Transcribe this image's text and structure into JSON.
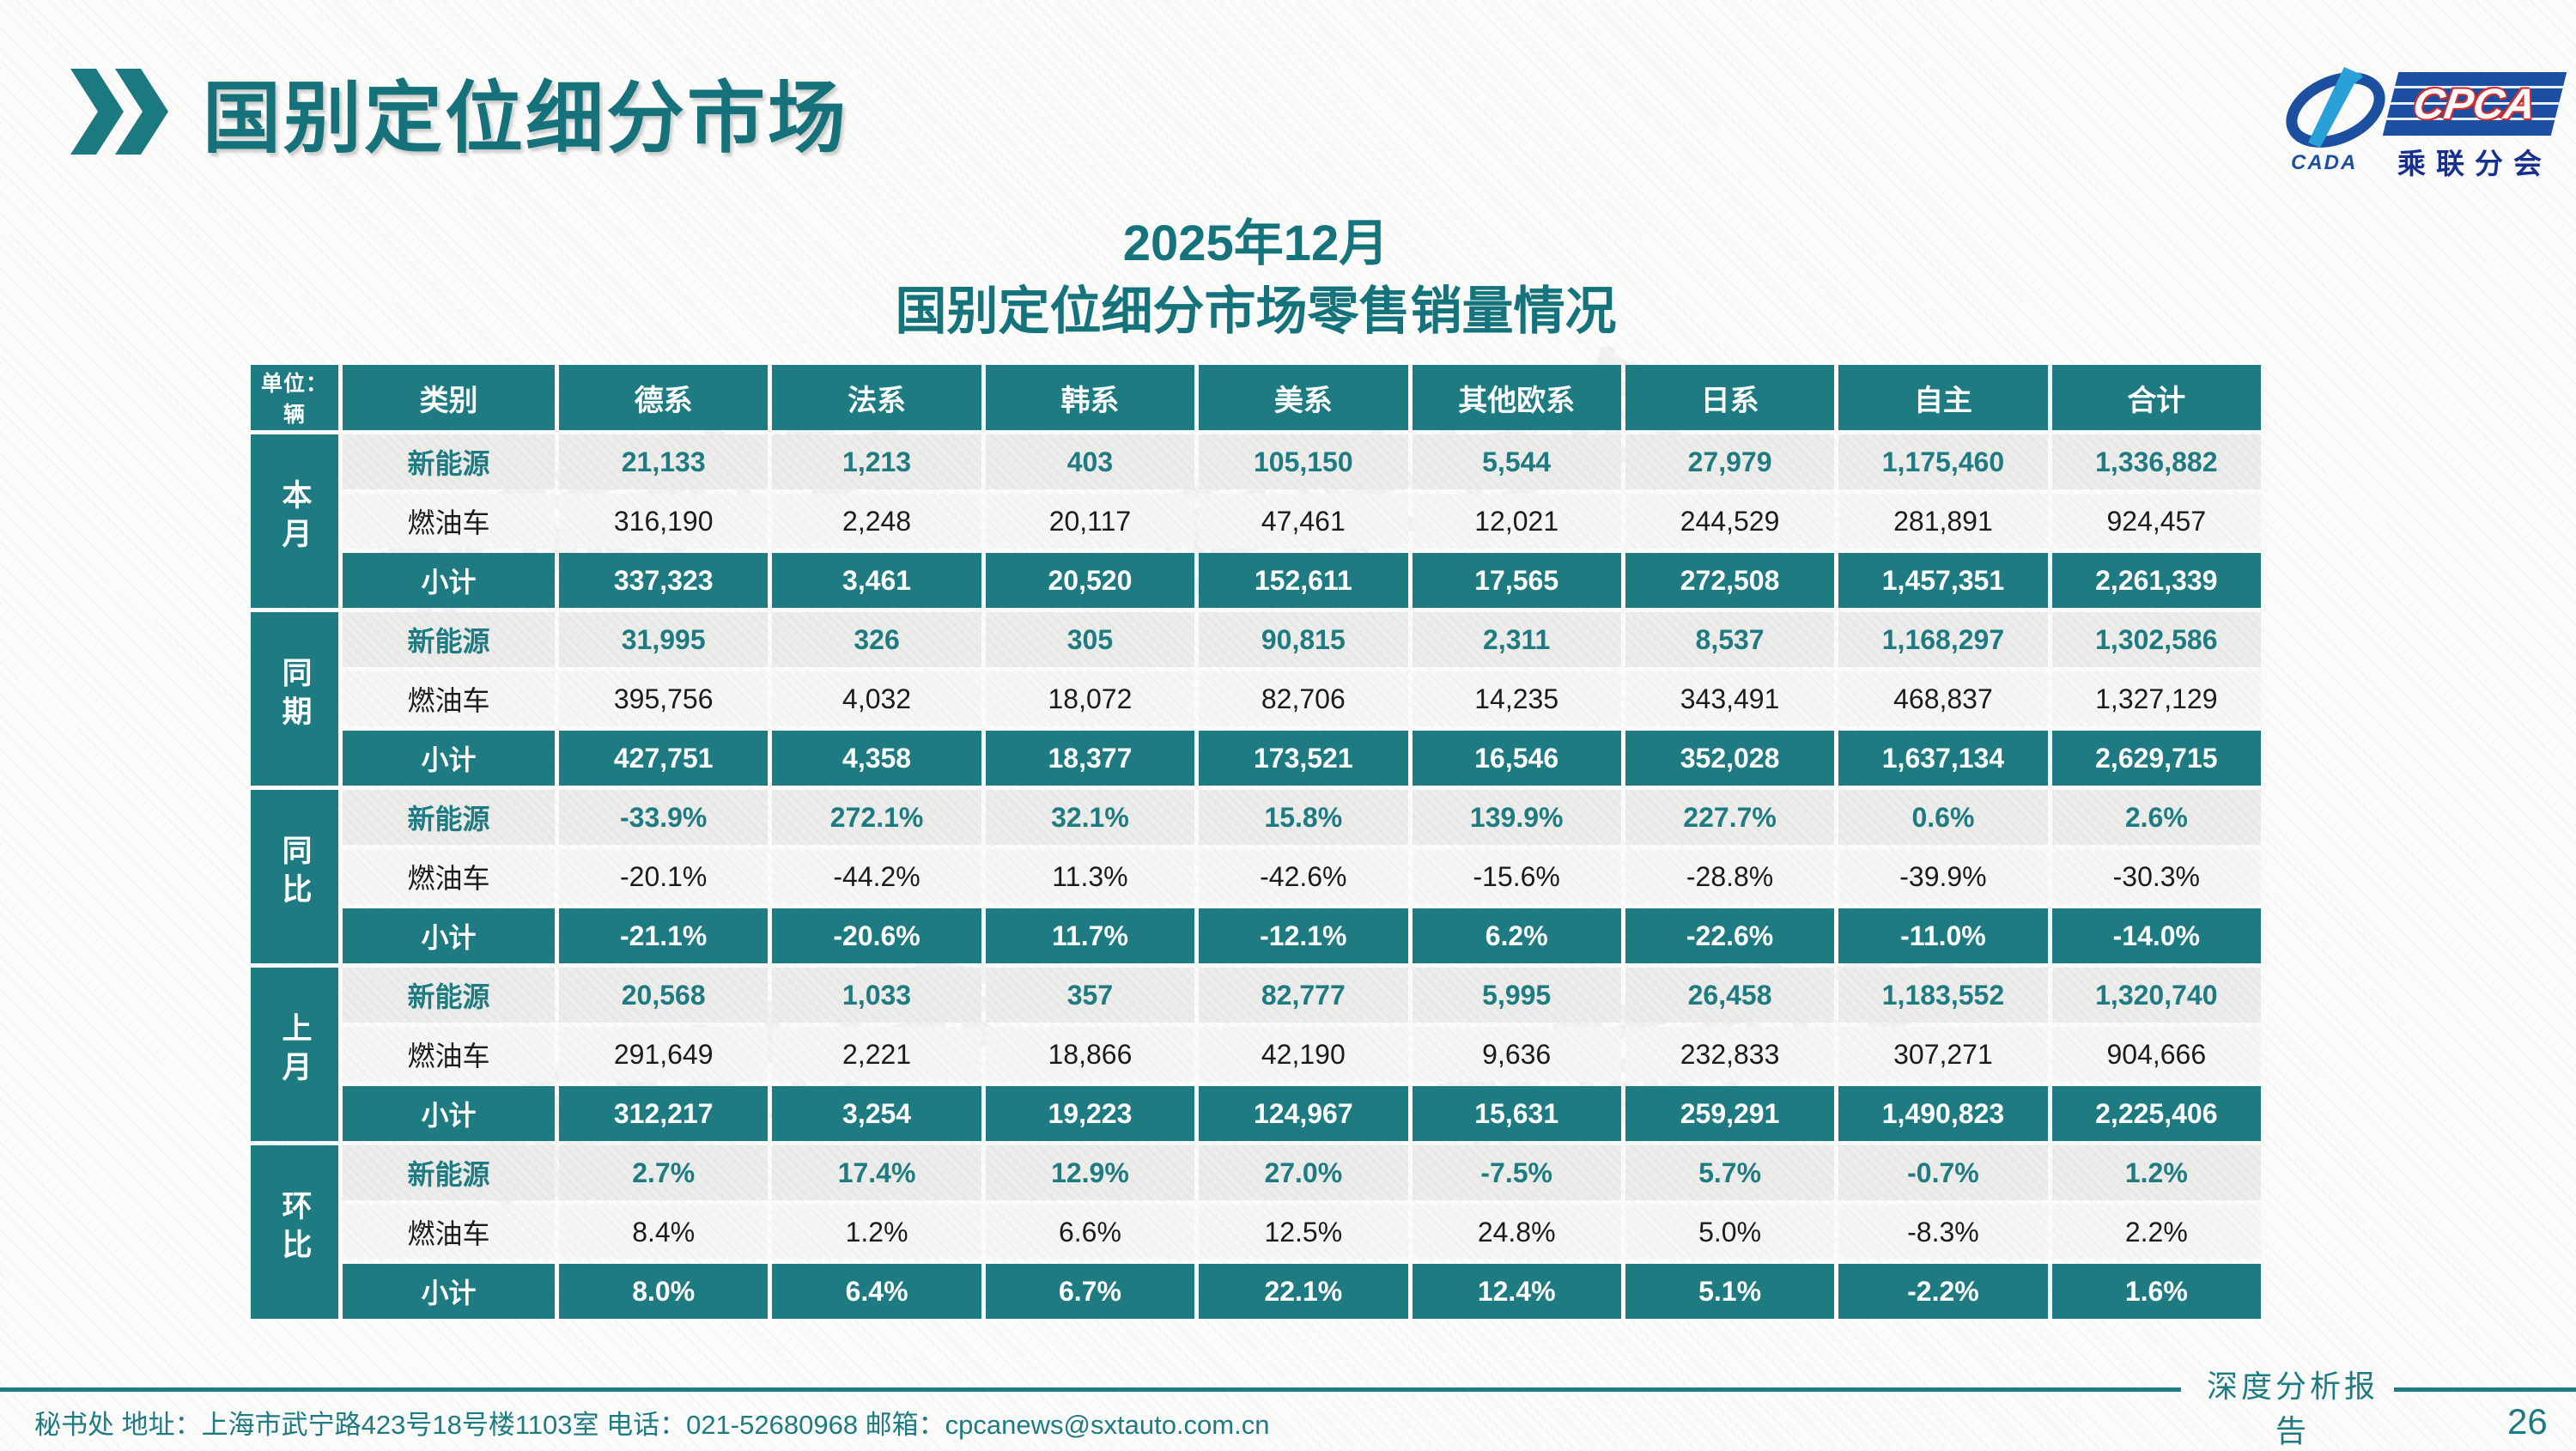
{
  "page": {
    "title": "国别定位细分市场",
    "subtitle_line1": "2025年12月",
    "subtitle_line2": "国别定位细分市场零售销量情况",
    "footer_left": "秘书处  地址：上海市武宁路423号18号楼1103室 电话：021-52680968  邮箱：cpcanews@sxtauto.com.cn",
    "footer_right": "深度分析报告",
    "page_number": "26",
    "watermark": "乘联分会"
  },
  "logo": {
    "cada": "CADA",
    "cpca": "CPCA",
    "branch": "乘联分会"
  },
  "colors": {
    "teal": "#1e7b81",
    "title_teal": "#15727a",
    "logo_blue": "#1c4fa3",
    "logo_light_blue": "#2aa0d8",
    "cpca_red": "#d62b2b"
  },
  "table": {
    "unit": "单位：辆",
    "columns": [
      "类别",
      "德系",
      "法系",
      "韩系",
      "美系",
      "其他欧系",
      "日系",
      "自主",
      "合计"
    ],
    "groups": [
      {
        "label": "本月",
        "rows": [
          {
            "label": "新能源",
            "style": "nev",
            "values": [
              "21,133",
              "1,213",
              "403",
              "105,150",
              "5,544",
              "27,979",
              "1,175,460",
              "1,336,882"
            ]
          },
          {
            "label": "燃油车",
            "style": "fuel",
            "values": [
              "316,190",
              "2,248",
              "20,117",
              "47,461",
              "12,021",
              "244,529",
              "281,891",
              "924,457"
            ]
          },
          {
            "label": "小计",
            "style": "subtotal",
            "values": [
              "337,323",
              "3,461",
              "20,520",
              "152,611",
              "17,565",
              "272,508",
              "1,457,351",
              "2,261,339"
            ]
          }
        ]
      },
      {
        "label": "同期",
        "rows": [
          {
            "label": "新能源",
            "style": "nev",
            "values": [
              "31,995",
              "326",
              "305",
              "90,815",
              "2,311",
              "8,537",
              "1,168,297",
              "1,302,586"
            ]
          },
          {
            "label": "燃油车",
            "style": "fuel",
            "values": [
              "395,756",
              "4,032",
              "18,072",
              "82,706",
              "14,235",
              "343,491",
              "468,837",
              "1,327,129"
            ]
          },
          {
            "label": "小计",
            "style": "subtotal",
            "values": [
              "427,751",
              "4,358",
              "18,377",
              "173,521",
              "16,546",
              "352,028",
              "1,637,134",
              "2,629,715"
            ]
          }
        ]
      },
      {
        "label": "同比",
        "rows": [
          {
            "label": "新能源",
            "style": "nev",
            "values": [
              "-33.9%",
              "272.1%",
              "32.1%",
              "15.8%",
              "139.9%",
              "227.7%",
              "0.6%",
              "2.6%"
            ]
          },
          {
            "label": "燃油车",
            "style": "fuel",
            "values": [
              "-20.1%",
              "-44.2%",
              "11.3%",
              "-42.6%",
              "-15.6%",
              "-28.8%",
              "-39.9%",
              "-30.3%"
            ]
          },
          {
            "label": "小计",
            "style": "subtotal",
            "values": [
              "-21.1%",
              "-20.6%",
              "11.7%",
              "-12.1%",
              "6.2%",
              "-22.6%",
              "-11.0%",
              "-14.0%"
            ]
          }
        ]
      },
      {
        "label": "上月",
        "rows": [
          {
            "label": "新能源",
            "style": "nev",
            "values": [
              "20,568",
              "1,033",
              "357",
              "82,777",
              "5,995",
              "26,458",
              "1,183,552",
              "1,320,740"
            ]
          },
          {
            "label": "燃油车",
            "style": "fuel",
            "values": [
              "291,649",
              "2,221",
              "18,866",
              "42,190",
              "9,636",
              "232,833",
              "307,271",
              "904,666"
            ]
          },
          {
            "label": "小计",
            "style": "subtotal",
            "values": [
              "312,217",
              "3,254",
              "19,223",
              "124,967",
              "15,631",
              "259,291",
              "1,490,823",
              "2,225,406"
            ]
          }
        ]
      },
      {
        "label": "环比",
        "rows": [
          {
            "label": "新能源",
            "style": "nev",
            "values": [
              "2.7%",
              "17.4%",
              "12.9%",
              "27.0%",
              "-7.5%",
              "5.7%",
              "-0.7%",
              "1.2%"
            ]
          },
          {
            "label": "燃油车",
            "style": "fuel",
            "values": [
              "8.4%",
              "1.2%",
              "6.6%",
              "12.5%",
              "24.8%",
              "5.0%",
              "-8.3%",
              "2.2%"
            ]
          },
          {
            "label": "小计",
            "style": "subtotal",
            "values": [
              "8.0%",
              "6.4%",
              "6.7%",
              "22.1%",
              "12.4%",
              "5.1%",
              "-2.2%",
              "1.6%"
            ]
          }
        ]
      }
    ]
  }
}
